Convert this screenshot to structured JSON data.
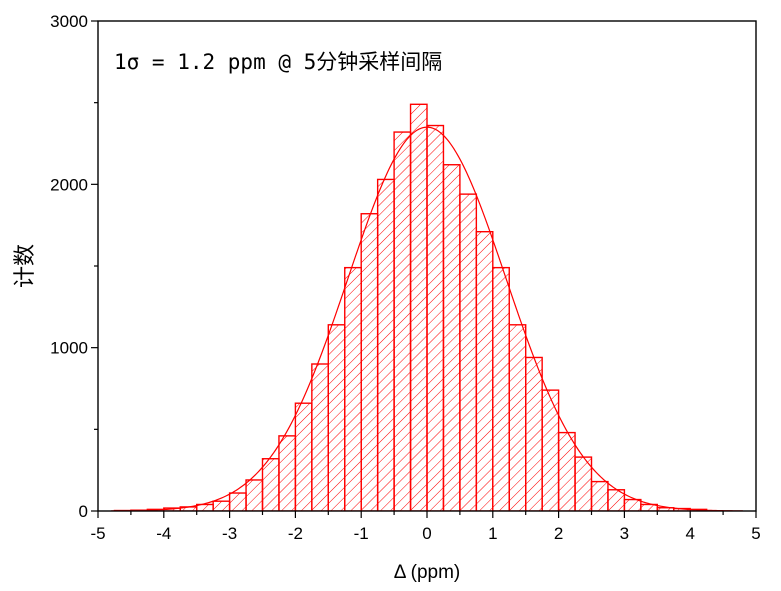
{
  "chart_data": {
    "type": "bar",
    "subtype": "histogram-with-gaussian-fit",
    "annotation": "1σ = 1.2 ppm @ 5分钟采样间隔",
    "xlabel": "Δ (ppm)",
    "ylabel": "计数",
    "xlim": [
      -5,
      5
    ],
    "ylim": [
      0,
      3000
    ],
    "xticks": [
      "-5",
      "-4",
      "-3",
      "-2",
      "-1",
      "0",
      "1",
      "2",
      "3",
      "4",
      "5"
    ],
    "yticks": [
      "0",
      "1000",
      "2000",
      "3000"
    ],
    "bin_width": 0.25,
    "bin_starts": [
      -4.75,
      -4.5,
      -4.25,
      -4.0,
      -3.75,
      -3.5,
      -3.25,
      -3.0,
      -2.75,
      -2.5,
      -2.25,
      -2.0,
      -1.75,
      -1.5,
      -1.25,
      -1.0,
      -0.75,
      -0.5,
      -0.25,
      0.0,
      0.25,
      0.5,
      0.75,
      1.0,
      1.25,
      1.5,
      1.75,
      2.0,
      2.25,
      2.5,
      2.75,
      3.0,
      3.25,
      3.5,
      3.75,
      4.0
    ],
    "values": [
      3,
      5,
      10,
      18,
      25,
      40,
      60,
      110,
      190,
      320,
      460,
      660,
      900,
      1140,
      1490,
      1820,
      2030,
      2320,
      2490,
      2360,
      2120,
      1940,
      1710,
      1490,
      1140,
      940,
      740,
      480,
      330,
      180,
      130,
      70,
      40,
      20,
      15,
      10
    ],
    "fit": {
      "type": "gaussian",
      "mean": 0.0,
      "sigma": 1.2,
      "amplitude": 2350
    },
    "colors": {
      "bars": "#ff0000",
      "fit": "#ff0000",
      "axes": "#000000"
    },
    "grid": false,
    "legend": "none"
  }
}
